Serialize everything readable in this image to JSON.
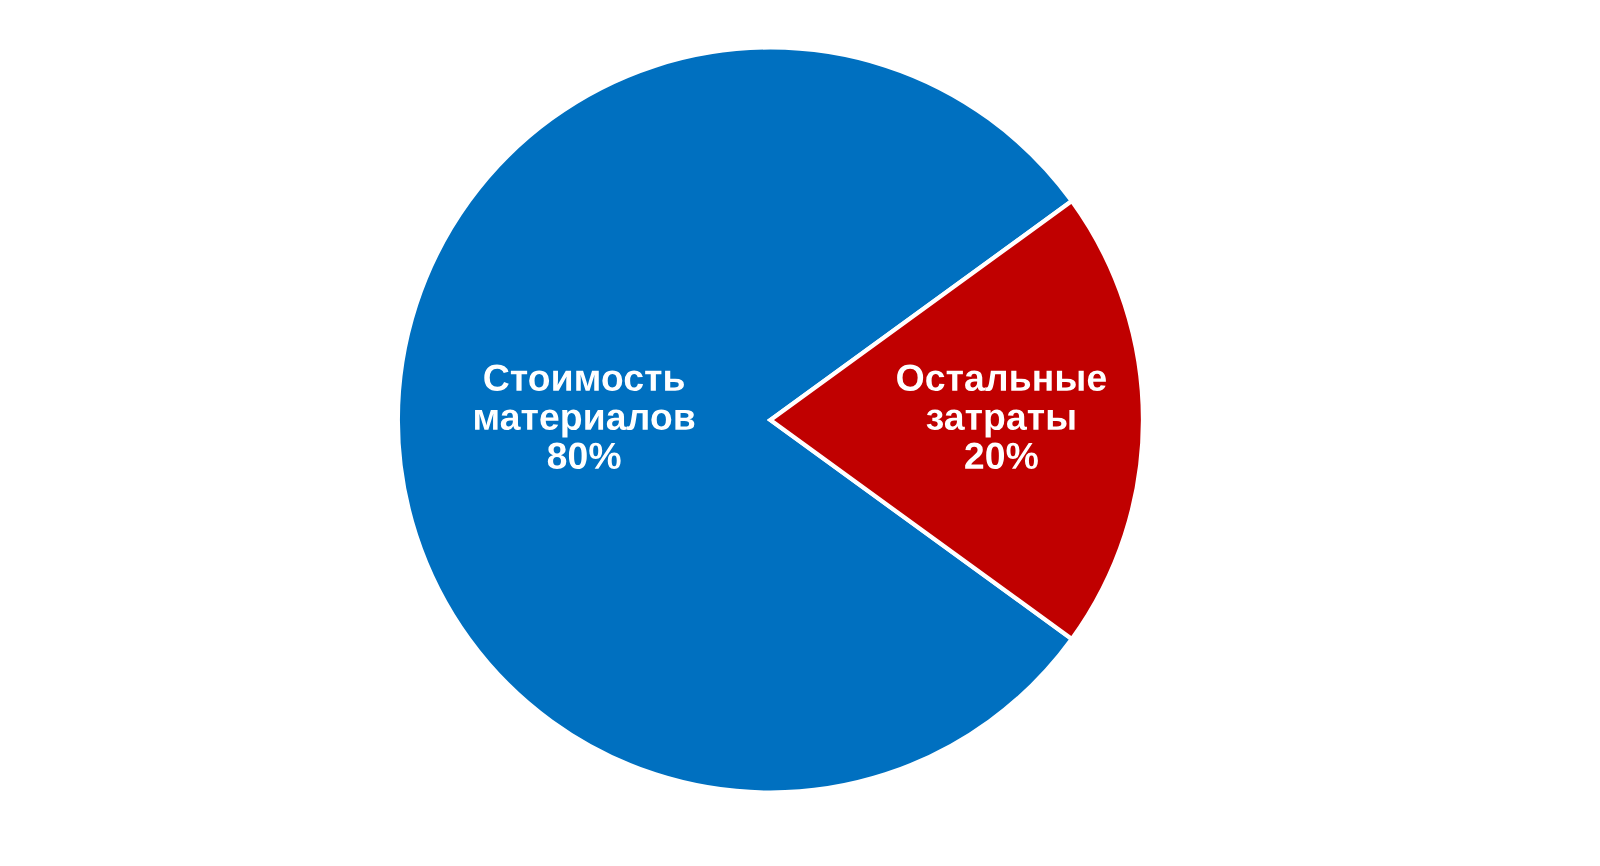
{
  "chart_data": {
    "type": "pie",
    "categories": [
      "Стоимость\nматериалов",
      "Остальные\nзатраты"
    ],
    "values": [
      80,
      20
    ],
    "value_labels": [
      "80%",
      "20%"
    ],
    "colors": [
      "#0070c0",
      "#c00000"
    ],
    "legend": false
  }
}
